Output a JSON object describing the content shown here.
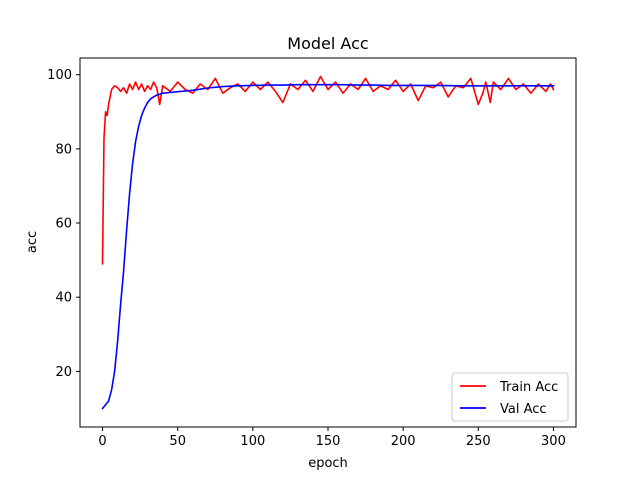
{
  "chart_data": {
    "type": "line",
    "title": "Model Acc",
    "xlabel": "epoch",
    "ylabel": "acc",
    "xlim": [
      -15,
      315
    ],
    "ylim": [
      5,
      104.5
    ],
    "xticks": [
      0,
      50,
      100,
      150,
      200,
      250,
      300
    ],
    "yticks": [
      20,
      40,
      60,
      80,
      100
    ],
    "grid": false,
    "legend_position": "lower-right",
    "series": [
      {
        "name": "Train Acc",
        "color": "#ff0000",
        "x": [
          0,
          1,
          2,
          3,
          4,
          5,
          6,
          8,
          10,
          12,
          14,
          16,
          18,
          20,
          22,
          24,
          26,
          28,
          30,
          32,
          34,
          36,
          38,
          40,
          45,
          50,
          55,
          60,
          65,
          70,
          75,
          80,
          85,
          90,
          95,
          100,
          105,
          110,
          115,
          120,
          125,
          130,
          135,
          140,
          145,
          150,
          155,
          160,
          165,
          170,
          175,
          180,
          185,
          190,
          195,
          200,
          205,
          210,
          215,
          220,
          225,
          230,
          235,
          240,
          245,
          250,
          253,
          255,
          258,
          260,
          265,
          270,
          275,
          280,
          285,
          290,
          295,
          298,
          300
        ],
        "values": [
          49,
          83,
          90,
          89,
          92,
          94,
          96,
          97,
          96.5,
          95.5,
          96.5,
          95,
          97.5,
          96,
          98,
          96,
          97.5,
          95.5,
          97,
          96,
          98,
          96.5,
          92,
          97,
          95.5,
          98,
          96,
          95,
          97.5,
          96,
          99,
          95,
          96.5,
          97.5,
          95.5,
          98,
          96,
          98,
          95.5,
          92.5,
          97.5,
          96,
          98.5,
          95.5,
          99.5,
          96,
          98,
          95,
          97.5,
          96,
          99,
          95.5,
          97,
          96,
          98.5,
          95.5,
          97.5,
          93,
          97,
          96.5,
          98,
          94,
          97,
          96.5,
          99,
          92,
          95,
          98,
          92.5,
          98,
          96,
          99,
          96,
          97.5,
          95,
          97.5,
          95.5,
          97.5,
          96
        ]
      },
      {
        "name": "Val Acc",
        "color": "#0000ff",
        "x": [
          0,
          2,
          4,
          6,
          8,
          10,
          12,
          14,
          16,
          18,
          20,
          22,
          24,
          26,
          28,
          30,
          32,
          34,
          36,
          38,
          40,
          45,
          50,
          55,
          60,
          65,
          70,
          80,
          90,
          100,
          110,
          120,
          130,
          140,
          150,
          160,
          170,
          180,
          190,
          200,
          220,
          240,
          260,
          280,
          300
        ],
        "values": [
          10,
          11,
          12,
          15,
          20,
          28,
          38,
          47,
          58,
          68,
          76,
          82,
          86,
          89,
          91,
          92.5,
          93.5,
          94,
          94.5,
          94.7,
          95,
          95.2,
          95.4,
          95.6,
          95.8,
          96.1,
          96.4,
          96.8,
          97,
          97.1,
          97.2,
          97.2,
          97.3,
          97.3,
          97.3,
          97.3,
          97.2,
          97.2,
          97.1,
          97.1,
          97.1,
          97,
          97,
          97,
          97
        ]
      }
    ]
  }
}
